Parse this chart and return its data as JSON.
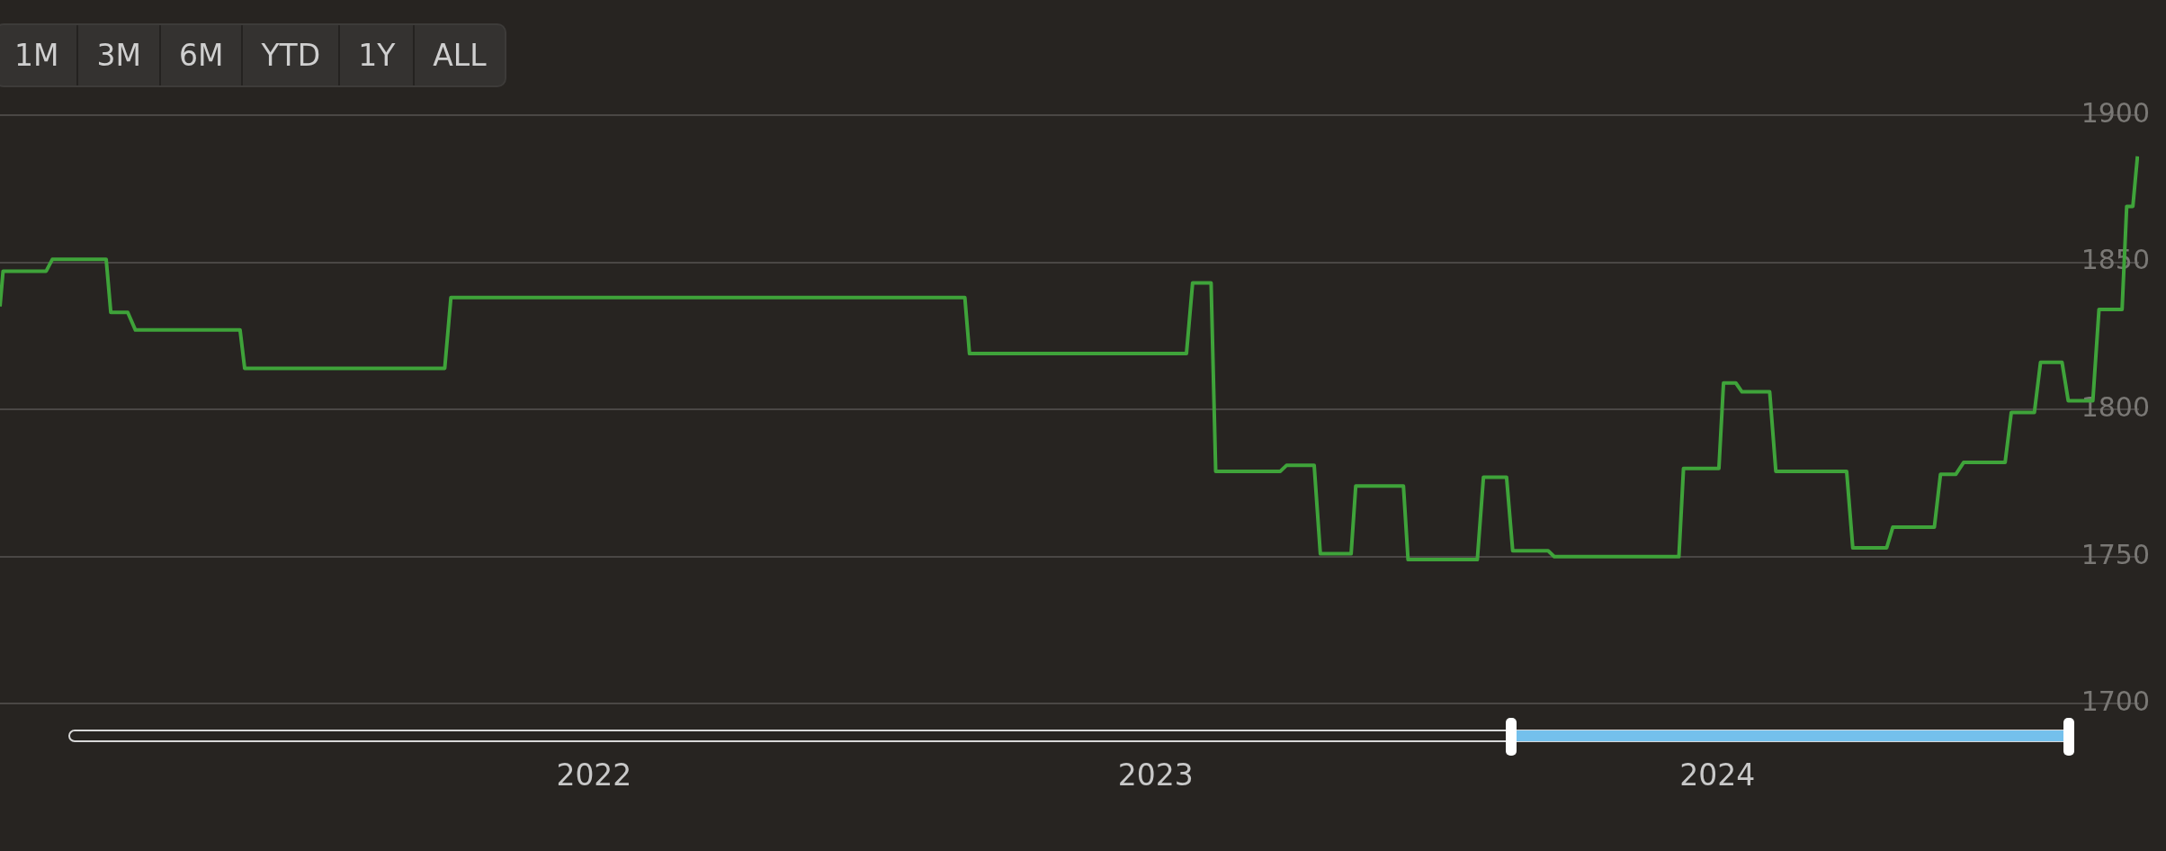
{
  "chart_data": {
    "type": "line",
    "annotations": [
      "1M",
      "3M",
      "6M",
      "YTD",
      "1Y",
      "ALL"
    ],
    "x": [
      "2020-12-11",
      "2020-12-13",
      "2021-01-10",
      "2021-01-14",
      "2021-02-18",
      "2021-02-21",
      "2021-03-04",
      "2021-03-09",
      "2021-05-16",
      "2021-05-19",
      "2021-09-26",
      "2021-09-30",
      "2022-08-30",
      "2022-09-02",
      "2023-01-21",
      "2023-01-25",
      "2023-02-06",
      "2023-02-09",
      "2023-03-23",
      "2023-03-27",
      "2023-04-14",
      "2023-04-18",
      "2023-05-08",
      "2023-05-11",
      "2023-06-11",
      "2023-06-14",
      "2023-07-29",
      "2023-08-02",
      "2023-08-17",
      "2023-08-21",
      "2023-09-13",
      "2023-09-17",
      "2023-12-07",
      "2023-12-10",
      "2024-01-02",
      "2024-01-05",
      "2024-01-13",
      "2024-01-17",
      "2024-02-04",
      "2024-02-08",
      "2024-03-25",
      "2024-03-29",
      "2024-04-20",
      "2024-04-24",
      "2024-05-21",
      "2024-05-25",
      "2024-06-04",
      "2024-06-09",
      "2024-07-06",
      "2024-07-10",
      "2024-07-25",
      "2024-07-29",
      "2024-08-12",
      "2024-08-16",
      "2024-09-01",
      "2024-09-05",
      "2024-09-20",
      "2024-09-23",
      "2024-09-27",
      "2024-09-30"
    ],
    "series": [
      {
        "color": "#3fa33a",
        "values": [
          1835,
          1847,
          1847,
          1851,
          1851,
          1833,
          1833,
          1827,
          1827,
          1814,
          1814,
          1838,
          1838,
          1819,
          1819,
          1843,
          1843,
          1779,
          1779,
          1781,
          1781,
          1751,
          1751,
          1774,
          1774,
          1749,
          1749,
          1777,
          1777,
          1752,
          1752,
          1750,
          1750,
          1780,
          1780,
          1809,
          1809,
          1806,
          1806,
          1779,
          1779,
          1753,
          1753,
          1760,
          1760,
          1778,
          1778,
          1782,
          1782,
          1799,
          1799,
          1816,
          1816,
          1803,
          1803,
          1834,
          1834,
          1869,
          1869,
          1886
        ]
      }
    ],
    "xlim": [
      "2020-12-11",
      "2024-10-01"
    ],
    "xticks": [
      {
        "value": "2022-01-01",
        "label": "2022"
      },
      {
        "value": "2023-01-01",
        "label": "2023"
      },
      {
        "value": "2024-01-01",
        "label": "2024"
      }
    ],
    "ylim": [
      1700,
      1900
    ],
    "yticks": [
      1700,
      1750,
      1800,
      1850,
      1900
    ],
    "grid": "y",
    "legend": false,
    "marker": "none",
    "line_style": "solid"
  }
}
